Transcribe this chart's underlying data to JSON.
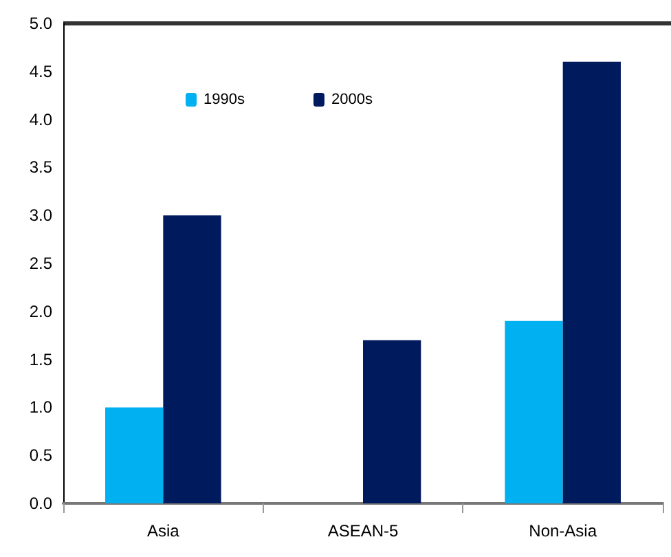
{
  "chart_data": {
    "type": "bar",
    "categories": [
      "Asia",
      "ASEAN-5",
      "Non-Asia"
    ],
    "series": [
      {
        "name": "1990s",
        "color": "#00b0f0",
        "values": [
          1.0,
          null,
          1.9
        ]
      },
      {
        "name": "2000s",
        "color": "#001a5e",
        "values": [
          3.0,
          1.7,
          4.6
        ]
      }
    ],
    "ylim": [
      0,
      5
    ],
    "yticks": [
      {
        "value": 0,
        "label": "0.0"
      },
      {
        "value": 0.5,
        "label": "0.5"
      },
      {
        "value": 1,
        "label": "1.0"
      },
      {
        "value": 1.5,
        "label": "1.5"
      },
      {
        "value": 2,
        "label": "2.0"
      },
      {
        "value": 2.5,
        "label": "2.5"
      },
      {
        "value": 3,
        "label": "3.0"
      },
      {
        "value": 3.5,
        "label": "3.5"
      },
      {
        "value": 4,
        "label": "4.0"
      },
      {
        "value": 4.5,
        "label": "4.5"
      },
      {
        "value": 5,
        "label": "5.0"
      }
    ],
    "grid": false,
    "legend": "top left"
  }
}
